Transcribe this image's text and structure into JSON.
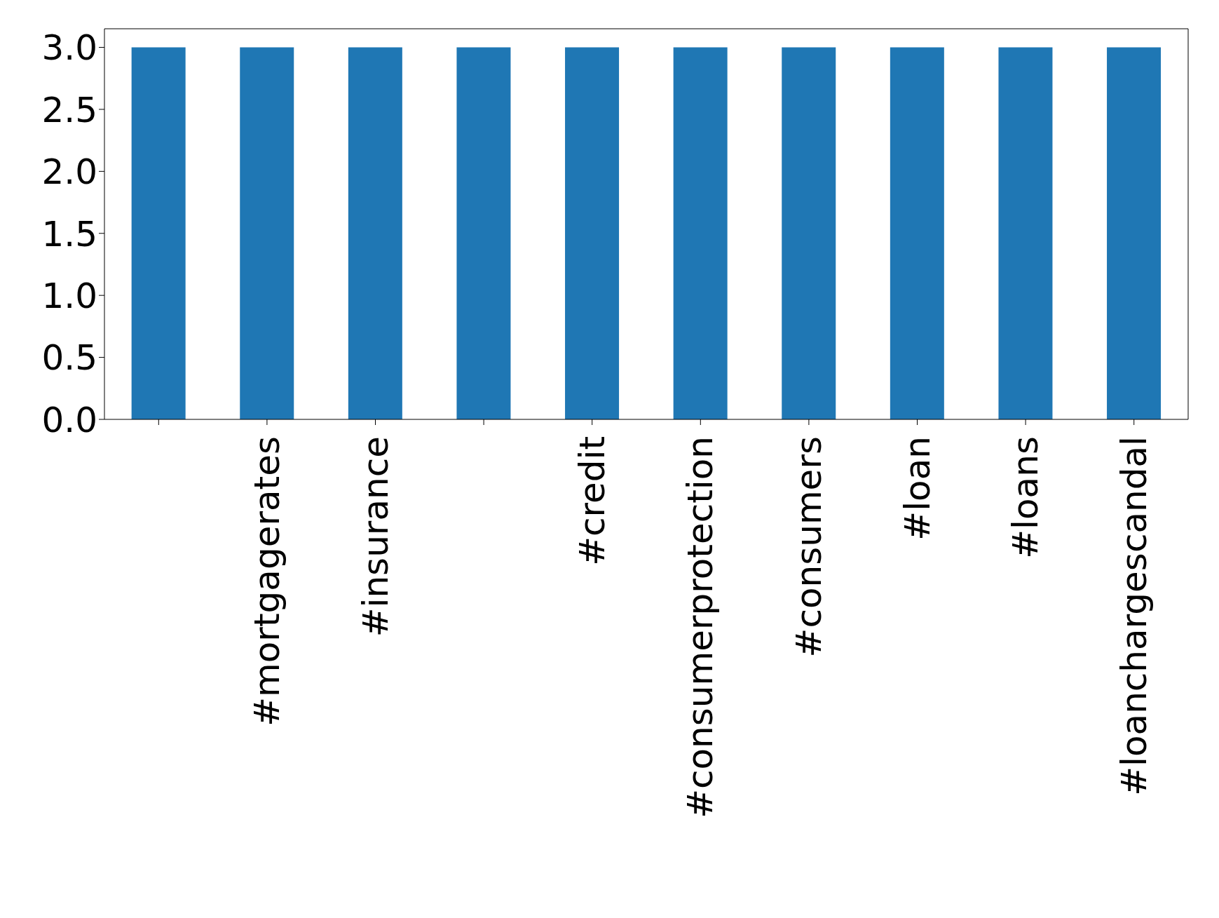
{
  "chart_data": {
    "type": "bar",
    "categories": [
      null,
      "#mortgagerates",
      "#insurance",
      null,
      "#credit",
      "#consumerprotection",
      "#consumers",
      "#loan",
      "#loans",
      "#loanchargescandal"
    ],
    "values": [
      3,
      3,
      3,
      3,
      3,
      3,
      3,
      3,
      3,
      3
    ],
    "color": "#1f77b4",
    "ylim": [
      0,
      3.15
    ],
    "yticks": [
      {
        "value": 0,
        "label": "0.0"
      },
      {
        "value": 0.5,
        "label": "0.5"
      },
      {
        "value": 1,
        "label": "1.0"
      },
      {
        "value": 1.5,
        "label": "1.5"
      },
      {
        "value": 2,
        "label": "2.0"
      },
      {
        "value": 2.5,
        "label": "2.5"
      },
      {
        "value": 3,
        "label": "3.0"
      }
    ],
    "grid": false,
    "legend": false
  }
}
